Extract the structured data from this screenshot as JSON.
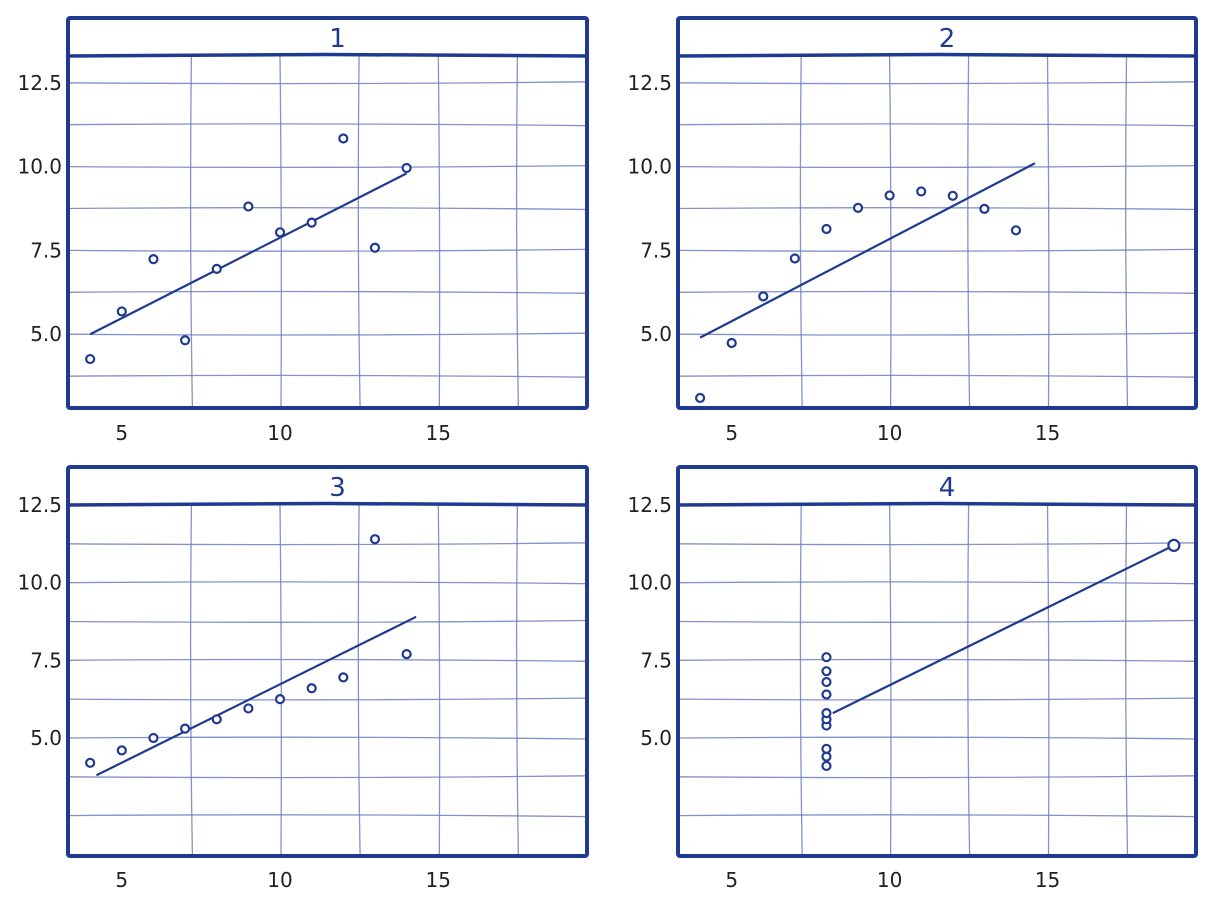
{
  "style": {
    "ink": "#1f3a8f",
    "grid": "#6f7fc0",
    "paper": "#ffffff"
  },
  "chart_data": [
    {
      "type": "scatter",
      "title": "1",
      "xticks": [
        5,
        10,
        15
      ],
      "yticks": [
        "5.0",
        "7.5",
        "10.0",
        "12.5"
      ],
      "xlim": [
        3.3,
        19.7
      ],
      "ylim": [
        2.8,
        13.3
      ],
      "points": [
        [
          4,
          4.26
        ],
        [
          5,
          5.68
        ],
        [
          6,
          7.24
        ],
        [
          7,
          4.82
        ],
        [
          8,
          6.95
        ],
        [
          9,
          8.81
        ],
        [
          10,
          8.04
        ],
        [
          11,
          8.33
        ],
        [
          12,
          10.84
        ],
        [
          13,
          7.58
        ],
        [
          14,
          9.96
        ]
      ],
      "fit_line": [
        [
          4,
          5.0
        ],
        [
          14,
          9.8
        ]
      ]
    },
    {
      "type": "scatter",
      "title": "2",
      "xticks": [
        5,
        10,
        15
      ],
      "yticks": [
        "5.0",
        "7.5",
        "10.0",
        "12.5"
      ],
      "xlim": [
        3.3,
        19.7
      ],
      "ylim": [
        2.8,
        13.3
      ],
      "points": [
        [
          4,
          3.1
        ],
        [
          5,
          4.74
        ],
        [
          6,
          6.13
        ],
        [
          7,
          7.26
        ],
        [
          8,
          8.14
        ],
        [
          9,
          8.77
        ],
        [
          10,
          9.14
        ],
        [
          11,
          9.26
        ],
        [
          12,
          9.13
        ],
        [
          13,
          8.74
        ],
        [
          14,
          8.1
        ]
      ],
      "fit_line": [
        [
          4,
          4.9
        ],
        [
          14.6,
          10.1
        ]
      ]
    },
    {
      "type": "scatter",
      "title": "3",
      "xticks": [
        5,
        10,
        15
      ],
      "yticks": [
        "5.0",
        "7.5",
        "10.0",
        "12.5"
      ],
      "xlim": [
        3.3,
        19.7
      ],
      "ylim": [
        1.2,
        12.5
      ],
      "points": [
        [
          4,
          4.2
        ],
        [
          5,
          4.6
        ],
        [
          6,
          5.0
        ],
        [
          7,
          5.3
        ],
        [
          8,
          5.6
        ],
        [
          9,
          5.95
        ],
        [
          10,
          6.25
        ],
        [
          11,
          6.6
        ],
        [
          12,
          6.95
        ],
        [
          13,
          11.4
        ],
        [
          14,
          7.7
        ]
      ],
      "fit_line": [
        [
          4.2,
          3.8
        ],
        [
          14.3,
          8.9
        ]
      ]
    },
    {
      "type": "scatter",
      "title": "4",
      "xticks": [
        5,
        10,
        15
      ],
      "yticks": [
        "5.0",
        "7.5",
        "10.0",
        "12.5"
      ],
      "xlim": [
        3.3,
        19.7
      ],
      "ylim": [
        1.2,
        12.5
      ],
      "points": [
        [
          8,
          4.1
        ],
        [
          8,
          4.4
        ],
        [
          8,
          4.65
        ],
        [
          8,
          5.4
        ],
        [
          8,
          5.6
        ],
        [
          8,
          5.8
        ],
        [
          8,
          6.4
        ],
        [
          8,
          6.8
        ],
        [
          8,
          7.15
        ],
        [
          8,
          7.6
        ],
        [
          19,
          11.2
        ]
      ],
      "fit_line": [
        [
          8.2,
          5.8
        ],
        [
          19,
          11.2
        ]
      ]
    }
  ]
}
